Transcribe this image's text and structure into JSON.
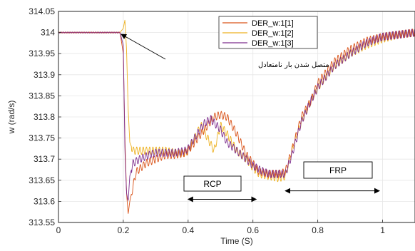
{
  "chart_data": {
    "type": "line",
    "title": "",
    "xlabel": "Time (S)",
    "ylabel": "w (rad/s)",
    "xlim": [
      0,
      1.1
    ],
    "ylim": [
      313.55,
      314.05
    ],
    "xticks": [
      "0",
      "0.2",
      "0.4",
      "0.6",
      "0.8",
      "1"
    ],
    "xtick_values": [
      0,
      0.2,
      0.4,
      0.6,
      0.8,
      1.0
    ],
    "yticks": [
      "313.55",
      "313.6",
      "313.65",
      "313.7",
      "313.75",
      "313.8",
      "313.85",
      "313.9",
      "313.95",
      "314",
      "314.05"
    ],
    "ytick_values": [
      313.55,
      313.6,
      313.65,
      313.7,
      313.75,
      313.8,
      313.85,
      313.9,
      313.95,
      314.0,
      314.05
    ],
    "grid": true,
    "legend_position": "top-right",
    "series": [
      {
        "name": "DER_w:1[1]",
        "color": "#d95319",
        "x": [
          0,
          0.19,
          0.2,
          0.205,
          0.21,
          0.215,
          0.22,
          0.24,
          0.27,
          0.3,
          0.33,
          0.36,
          0.39,
          0.4,
          0.42,
          0.45,
          0.48,
          0.5,
          0.52,
          0.55,
          0.58,
          0.6,
          0.62,
          0.65,
          0.68,
          0.7,
          0.72,
          0.75,
          0.78,
          0.8,
          0.85,
          0.9,
          0.95,
          1.0,
          1.05,
          1.1
        ],
        "y": [
          314.0,
          314.0,
          313.95,
          313.75,
          313.62,
          313.57,
          313.6,
          313.67,
          313.69,
          313.7,
          313.71,
          313.71,
          313.715,
          313.72,
          313.74,
          313.77,
          313.8,
          313.805,
          313.8,
          313.76,
          313.71,
          313.69,
          313.67,
          313.665,
          313.665,
          313.67,
          313.72,
          313.8,
          313.84,
          313.88,
          313.93,
          313.96,
          313.98,
          313.99,
          313.995,
          314.0
        ]
      },
      {
        "name": "DER_w:1[2]",
        "color": "#edb120",
        "x": [
          0,
          0.19,
          0.2,
          0.205,
          0.21,
          0.215,
          0.22,
          0.23,
          0.25,
          0.28,
          0.3,
          0.33,
          0.36,
          0.39,
          0.4,
          0.42,
          0.44,
          0.46,
          0.48,
          0.5,
          0.52,
          0.55,
          0.58,
          0.6,
          0.62,
          0.65,
          0.68,
          0.7,
          0.72,
          0.75,
          0.78,
          0.8,
          0.85,
          0.9,
          0.95,
          1.0,
          1.05,
          1.1
        ],
        "y": [
          314.0,
          314.0,
          314.01,
          314.03,
          313.96,
          313.82,
          313.74,
          313.72,
          313.72,
          313.72,
          313.72,
          313.72,
          313.715,
          313.715,
          313.72,
          313.75,
          313.78,
          313.75,
          313.72,
          313.78,
          313.76,
          313.72,
          313.7,
          313.68,
          313.665,
          313.66,
          313.655,
          313.66,
          313.72,
          313.79,
          313.84,
          313.87,
          313.92,
          313.95,
          313.97,
          313.985,
          313.995,
          314.0
        ]
      },
      {
        "name": "DER_w:1[3]",
        "color": "#7e2f8e",
        "x": [
          0,
          0.19,
          0.2,
          0.205,
          0.21,
          0.215,
          0.22,
          0.23,
          0.25,
          0.28,
          0.3,
          0.33,
          0.36,
          0.39,
          0.4,
          0.42,
          0.45,
          0.47,
          0.5,
          0.52,
          0.55,
          0.58,
          0.6,
          0.62,
          0.65,
          0.68,
          0.7,
          0.72,
          0.75,
          0.78,
          0.8,
          0.85,
          0.9,
          0.95,
          1.0,
          1.05,
          1.1
        ],
        "y": [
          314.0,
          314.0,
          313.97,
          313.72,
          313.62,
          313.6,
          313.66,
          313.69,
          313.7,
          313.71,
          313.715,
          313.715,
          313.715,
          313.72,
          313.725,
          313.75,
          313.785,
          313.795,
          313.77,
          313.74,
          313.72,
          313.7,
          313.685,
          313.675,
          313.665,
          313.665,
          313.665,
          313.71,
          313.79,
          313.84,
          313.87,
          313.92,
          313.95,
          313.975,
          313.99,
          313.995,
          314.0
        ]
      }
    ],
    "annotations": [
      {
        "text": "متصل شدن بار نامتعادل",
        "type": "arrow",
        "points_to": [
          0.195,
          314.0
        ]
      },
      {
        "text": "RCP",
        "type": "span",
        "x_range": [
          0.4,
          0.61
        ],
        "y": 313.605
      },
      {
        "text": "FRP",
        "type": "span",
        "x_range": [
          0.7,
          0.99
        ],
        "y": 313.625
      }
    ]
  }
}
